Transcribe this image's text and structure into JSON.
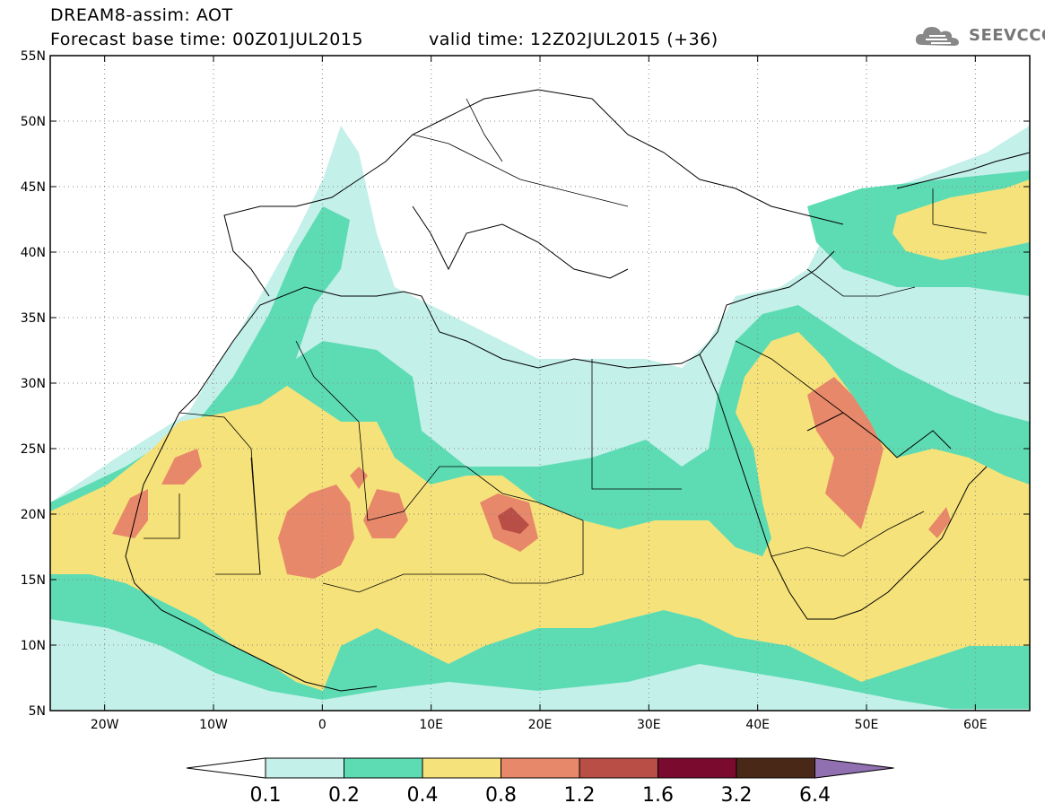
{
  "title": {
    "line1": "DREAM8-assim: AOT",
    "line2": "Forecast base time: 00Z01JUL2015",
    "valid": "valid time: 12Z02JUL2015 (+36)"
  },
  "logo": {
    "text": "SEEVCCC",
    "icon": "cloud-icon",
    "color": "#777777"
  },
  "axes": {
    "lon_range": [
      -25,
      65
    ],
    "lat_range": [
      5,
      55
    ],
    "lat_labels": [
      "55N",
      "50N",
      "45N",
      "40N",
      "35N",
      "30N",
      "25N",
      "20N",
      "15N",
      "10N",
      "5N"
    ],
    "lat_values": [
      55,
      50,
      45,
      40,
      35,
      30,
      25,
      20,
      15,
      10,
      5
    ],
    "lon_labels": [
      "20W",
      "10W",
      "0",
      "10E",
      "20E",
      "30E",
      "40E",
      "50E",
      "60E"
    ],
    "lon_values": [
      -20,
      -10,
      0,
      10,
      20,
      30,
      40,
      50,
      60
    ],
    "grid": "dotted"
  },
  "colorbar": {
    "levels": [
      "0.1",
      "0.2",
      "0.4",
      "0.8",
      "1.2",
      "1.6",
      "3.2",
      "6.4"
    ],
    "colors": [
      "#c4f0ea",
      "#5ddcb4",
      "#f6e27a",
      "#e8886a",
      "#b84e45",
      "#7a0a2e",
      "#4a2818",
      "#9070b0"
    ],
    "low_extend_color": "#ffffff"
  }
}
